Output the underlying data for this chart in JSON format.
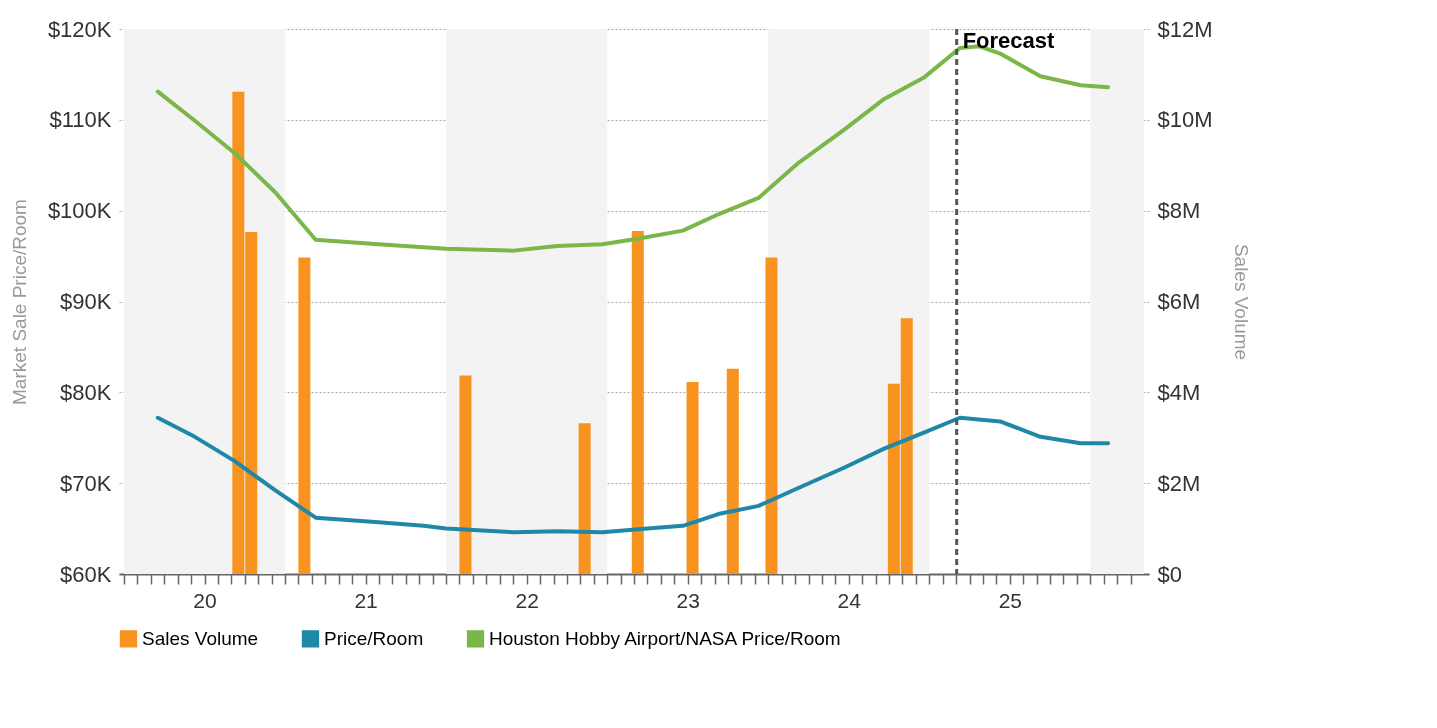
{
  "chart_data": {
    "type": "line",
    "ylabel": "Market Sale Price/Room",
    "y2label": "Sales Volume",
    "xlim": [
      19.5,
      25.833
    ],
    "xticks": [
      {
        "value": 19.5,
        "label": null
      },
      {
        "value": 19.583,
        "label": null
      },
      {
        "value": 19.667,
        "label": null
      },
      {
        "value": 19.75,
        "label": null
      },
      {
        "value": 19.833,
        "label": null
      },
      {
        "value": 19.917,
        "label": null
      },
      20,
      {
        "value": 20.083,
        "label": null
      },
      {
        "value": 20.167,
        "label": null
      },
      {
        "value": 20.25,
        "label": null
      },
      {
        "value": 20.333,
        "label": null
      },
      {
        "value": 20.417,
        "label": null
      },
      {
        "value": 20.5,
        "label": null
      },
      {
        "value": 20.583,
        "label": null
      },
      {
        "value": 20.667,
        "label": null
      },
      {
        "value": 20.75,
        "label": null
      },
      {
        "value": 20.833,
        "label": null
      },
      {
        "value": 20.917,
        "label": null
      },
      21,
      {
        "value": 21.083,
        "label": null
      },
      {
        "value": 21.167,
        "label": null
      },
      {
        "value": 21.25,
        "label": null
      },
      {
        "value": 21.333,
        "label": null
      },
      {
        "value": 21.417,
        "label": null
      },
      {
        "value": 21.5,
        "label": null
      },
      {
        "value": 21.583,
        "label": null
      },
      {
        "value": 21.667,
        "label": null
      },
      {
        "value": 21.75,
        "label": null
      },
      {
        "value": 21.833,
        "label": null
      },
      {
        "value": 21.917,
        "label": null
      },
      22,
      {
        "value": 22.083,
        "label": null
      },
      {
        "value": 22.167,
        "label": null
      },
      {
        "value": 22.25,
        "label": null
      },
      {
        "value": 22.333,
        "label": null
      },
      {
        "value": 22.417,
        "label": null
      },
      {
        "value": 22.5,
        "label": null
      },
      {
        "value": 22.583,
        "label": null
      },
      {
        "value": 22.667,
        "label": null
      },
      {
        "value": 22.75,
        "label": null
      },
      {
        "value": 22.833,
        "label": null
      },
      {
        "value": 22.917,
        "label": null
      },
      23,
      {
        "value": 23.083,
        "label": null
      },
      {
        "value": 23.167,
        "label": null
      },
      {
        "value": 23.25,
        "label": null
      },
      {
        "value": 23.333,
        "label": null
      },
      {
        "value": 23.417,
        "label": null
      },
      {
        "value": 23.5,
        "label": null
      },
      {
        "value": 23.583,
        "label": null
      },
      {
        "value": 23.667,
        "label": null
      },
      {
        "value": 23.75,
        "label": null
      },
      {
        "value": 23.833,
        "label": null
      },
      {
        "value": 23.917,
        "label": null
      },
      24,
      {
        "value": 24.083,
        "label": null
      },
      {
        "value": 24.167,
        "label": null
      },
      {
        "value": 24.25,
        "label": null
      },
      {
        "value": 24.333,
        "label": null
      },
      {
        "value": 24.417,
        "label": null
      },
      {
        "value": 24.5,
        "label": null
      },
      {
        "value": 24.583,
        "label": null
      },
      {
        "value": 24.667,
        "label": null
      },
      {
        "value": 24.75,
        "label": null
      },
      {
        "value": 24.833,
        "label": null
      },
      {
        "value": 24.917,
        "label": null
      },
      25,
      {
        "value": 25.083,
        "label": null
      },
      {
        "value": 25.167,
        "label": null
      },
      {
        "value": 25.25,
        "label": null
      },
      {
        "value": 25.333,
        "label": null
      },
      {
        "value": 25.417,
        "label": null
      },
      {
        "value": 25.5,
        "label": null
      },
      {
        "value": 25.583,
        "label": null
      },
      {
        "value": 25.667,
        "label": null
      },
      {
        "value": 25.75,
        "label": null
      }
    ],
    "ylim": [
      60000,
      120000
    ],
    "yticks": [
      {
        "value": 60000,
        "label": "$60K"
      },
      {
        "value": 70000,
        "label": "$70K"
      },
      {
        "value": 80000,
        "label": "$80K"
      },
      {
        "value": 90000,
        "label": "$90K"
      },
      {
        "value": 100000,
        "label": "$100K"
      },
      {
        "value": 110000,
        "label": "$110K"
      },
      {
        "value": 120000,
        "label": "$120K"
      }
    ],
    "y2lim": [
      0,
      12000000
    ],
    "y2ticks": [
      {
        "value": 0,
        "label": "$0"
      },
      {
        "value": 2000000,
        "label": "$2M"
      },
      {
        "value": 4000000,
        "label": "$4M"
      },
      {
        "value": 6000000,
        "label": "$6M"
      },
      {
        "value": 8000000,
        "label": "$8M"
      },
      {
        "value": 10000000,
        "label": "$10M"
      },
      {
        "value": 12000000,
        "label": "$12M"
      }
    ],
    "series": [
      {
        "name": "Sales Volume",
        "type": "bar",
        "axis": "y2",
        "color": "#f7931e",
        "x": [
          20.21,
          20.29,
          20.62,
          21.62,
          22.36,
          22.69,
          23.03,
          23.28,
          23.52,
          24.28,
          24.36
        ],
        "values": [
          10620000,
          7530000,
          6970000,
          4370000,
          3320000,
          7550000,
          4230000,
          4520000,
          6970000,
          4190000,
          5630000
        ]
      },
      {
        "name": "Price/Room",
        "color": "#1f88a6",
        "x": [
          19.71,
          19.94,
          20.19,
          20.44,
          20.69,
          21.08,
          21.36,
          21.5,
          21.92,
          22.19,
          22.47,
          22.75,
          22.97,
          23.19,
          23.44,
          23.69,
          23.97,
          24.22,
          24.47,
          24.69,
          24.94,
          25.19,
          25.44,
          25.61
        ],
        "values": [
          77200,
          75100,
          72400,
          69200,
          66200,
          65700,
          65300,
          65000,
          64600,
          64700,
          64600,
          65000,
          65300,
          66600,
          67500,
          69500,
          71700,
          73800,
          75600,
          77200,
          76800,
          75100,
          74400,
          74400
        ]
      },
      {
        "name": "Houston Hobby Airport/NASA Price/Room",
        "color": "#7ab648",
        "x": [
          19.71,
          19.94,
          20.19,
          20.44,
          20.69,
          21.08,
          21.5,
          21.92,
          22.19,
          22.47,
          22.69,
          22.97,
          23.19,
          23.44,
          23.69,
          23.97,
          24.22,
          24.47,
          24.69,
          24.81,
          24.94,
          25.19,
          25.44,
          25.61
        ],
        "values": [
          113100,
          109900,
          106300,
          102000,
          96800,
          96300,
          95800,
          95600,
          96100,
          96300,
          96900,
          97800,
          99600,
          101400,
          105300,
          108900,
          112300,
          114700,
          117900,
          118100,
          117300,
          114800,
          113800,
          113600
        ]
      }
    ],
    "bands": [
      {
        "axis": "x",
        "from": 19.5,
        "to": 20.5,
        "color": "#f3f3f3"
      },
      {
        "axis": "x",
        "from": 21.5,
        "to": 22.5,
        "color": "#f3f3f3"
      },
      {
        "axis": "x",
        "from": 23.5,
        "to": 24.5,
        "color": "#f3f3f3"
      },
      {
        "axis": "x",
        "from": 25.5,
        "to": 25.833,
        "color": "#f3f3f3"
      }
    ],
    "ref_lines": [
      {
        "axis": "x",
        "value": 24.67,
        "label": "Forecast",
        "color": "#555555",
        "line_style": "dashed"
      }
    ],
    "grid": "y",
    "legend": "bottom"
  }
}
